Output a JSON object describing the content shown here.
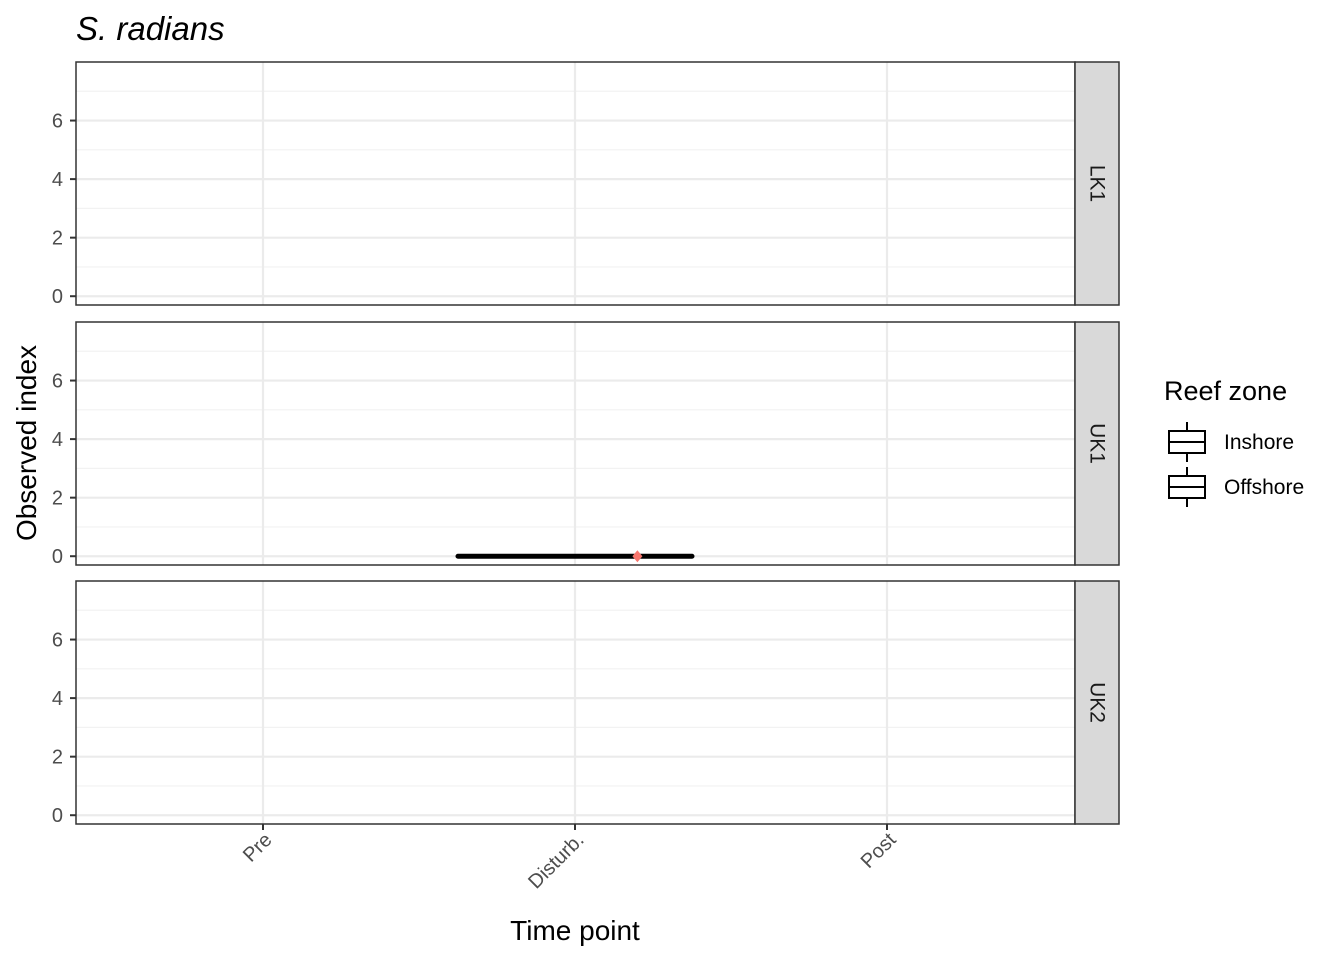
{
  "chart_data": {
    "type": "box",
    "title": "S. radians",
    "xlabel": "Time point",
    "ylabel": "Observed index",
    "categories": [
      "Pre",
      "Disturb.",
      "Post"
    ],
    "ylim": [
      -0.3,
      8.0
    ],
    "y_ticks": [
      0,
      2,
      4,
      6
    ],
    "grid": true,
    "facets": [
      {
        "label": "LK1",
        "boxes": []
      },
      {
        "label": "UK1",
        "boxes": [
          {
            "category": "Disturb.",
            "group": "Inshore",
            "min": 0,
            "q1": 0,
            "median": 0,
            "q3": 0,
            "max": 0,
            "mean": 0,
            "mean_color": "#f8766d"
          }
        ]
      },
      {
        "label": "UK2",
        "boxes": []
      }
    ],
    "legend": {
      "title": "Reef zone",
      "placement": "right",
      "entries": [
        "Inshore",
        "Offshore"
      ]
    },
    "colors": {
      "panel_border": "#333333",
      "grid_major": "#ebebeb",
      "grid_minor": "#f2f2f2",
      "strip_fill": "#d9d9d9",
      "box_line": "#000000",
      "mean_marker": "#f8766d"
    }
  }
}
